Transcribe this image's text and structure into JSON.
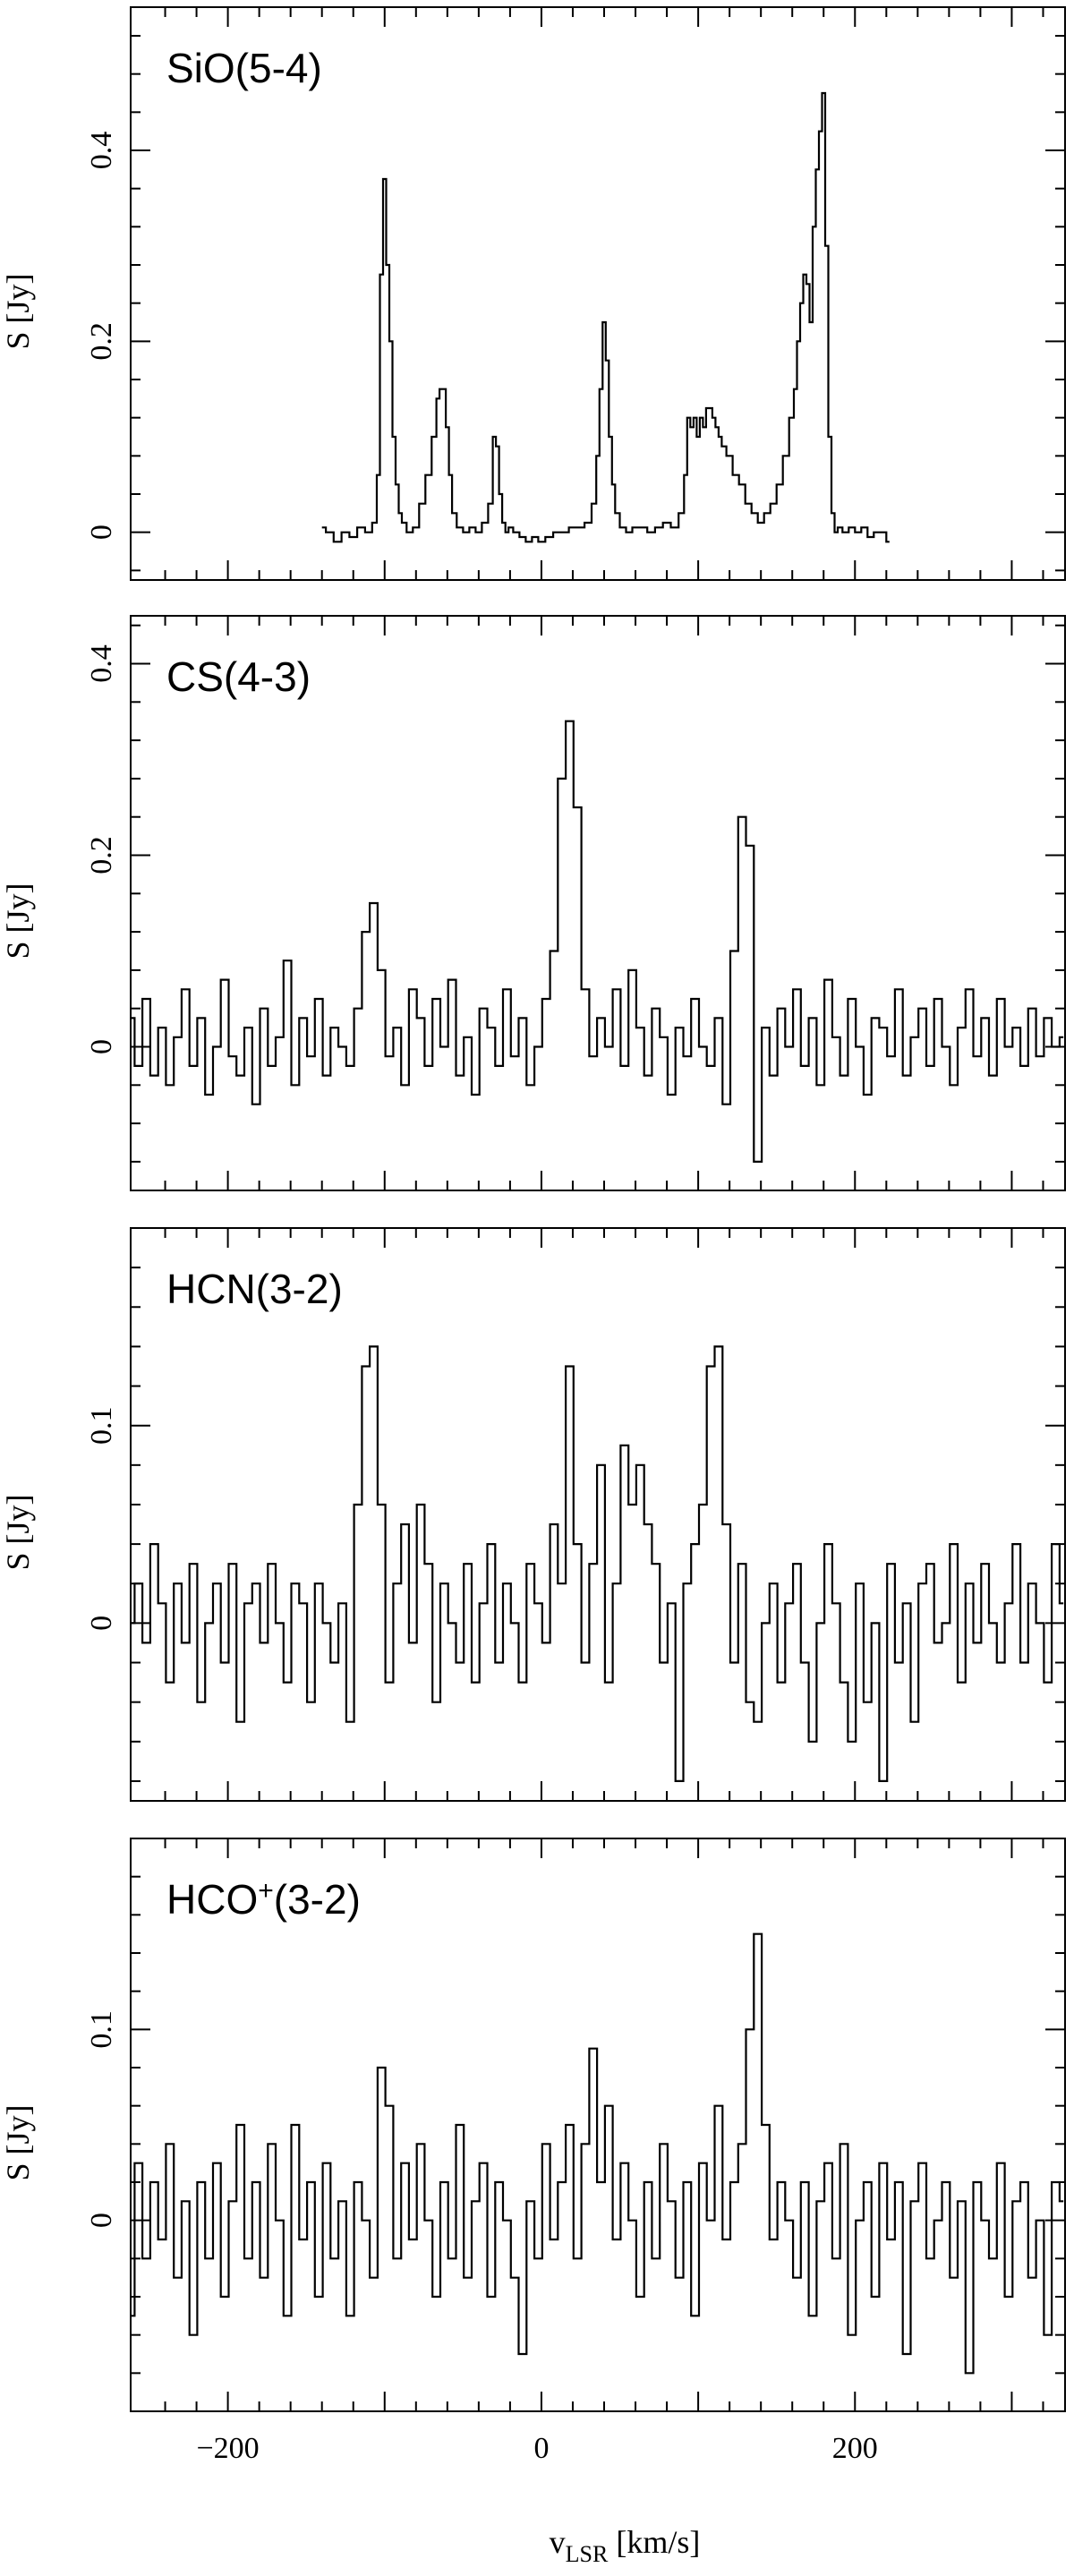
{
  "chart_data": [
    {
      "type": "line",
      "panel_label": "SiO(5-4)",
      "ylabel": "S [Jy]",
      "xlabel": "",
      "xlim": [
        -262,
        334
      ],
      "ylim": [
        -0.05,
        0.55
      ],
      "yticks": [
        0,
        0.2,
        0.4
      ],
      "ytick_labels": [
        "0",
        "0.2",
        "0.4"
      ],
      "x": [
        -140,
        -135,
        -130,
        -125,
        -120,
        -115,
        -110,
        -106,
        -104,
        -102,
        -100,
        -98,
        -96,
        -94,
        -92,
        -90,
        -88,
        -84,
        -80,
        -76,
        -72,
        -68,
        -66,
        -64,
        -62,
        -60,
        -58,
        -56,
        -52,
        -48,
        -44,
        -40,
        -36,
        -32,
        -30,
        -28,
        -26,
        -24,
        -22,
        -20,
        -16,
        -12,
        -8,
        -4,
        0,
        5,
        10,
        15,
        20,
        25,
        30,
        34,
        36,
        38,
        40,
        42,
        44,
        46,
        48,
        52,
        56,
        60,
        65,
        70,
        75,
        80,
        85,
        90,
        92,
        94,
        96,
        98,
        100,
        102,
        104,
        106,
        108,
        110,
        112,
        114,
        116,
        120,
        124,
        128,
        132,
        136,
        140,
        144,
        148,
        152,
        156,
        160,
        162,
        164,
        166,
        168,
        170,
        172,
        174,
        176,
        178,
        180,
        182,
        184,
        186,
        188,
        190,
        194,
        198,
        202,
        206,
        210,
        214,
        218,
        222
      ],
      "y": [
        0.005,
        0.0,
        -0.01,
        0.0,
        -0.005,
        0.005,
        0.0,
        0.01,
        0.06,
        0.27,
        0.37,
        0.28,
        0.2,
        0.1,
        0.05,
        0.02,
        0.01,
        0.0,
        0.005,
        0.03,
        0.06,
        0.1,
        0.14,
        0.15,
        0.15,
        0.11,
        0.06,
        0.02,
        0.005,
        0.0,
        0.005,
        0.0,
        0.01,
        0.03,
        0.1,
        0.09,
        0.04,
        0.01,
        0.0,
        0.005,
        0.0,
        -0.005,
        -0.01,
        -0.005,
        -0.01,
        -0.005,
        0.0,
        0.0,
        0.005,
        0.005,
        0.01,
        0.03,
        0.08,
        0.15,
        0.22,
        0.18,
        0.1,
        0.05,
        0.02,
        0.005,
        0.0,
        0.005,
        0.005,
        0.0,
        0.005,
        0.01,
        0.005,
        0.02,
        0.06,
        0.12,
        0.11,
        0.12,
        0.1,
        0.12,
        0.11,
        0.13,
        0.13,
        0.12,
        0.11,
        0.1,
        0.09,
        0.08,
        0.06,
        0.05,
        0.03,
        0.02,
        0.01,
        0.02,
        0.03,
        0.05,
        0.08,
        0.12,
        0.15,
        0.2,
        0.24,
        0.27,
        0.26,
        0.22,
        0.32,
        0.38,
        0.42,
        0.46,
        0.3,
        0.1,
        0.02,
        0.0,
        0.005,
        0.0,
        0.005,
        0.0,
        0.005,
        -0.005,
        0.0,
        0.0,
        -0.01
      ]
    },
    {
      "type": "line",
      "panel_label": "CS(4-3)",
      "ylabel": "S [Jy]",
      "xlabel": "",
      "xlim": [
        -262,
        334
      ],
      "ylim": [
        -0.15,
        0.45
      ],
      "yticks": [
        0,
        0.2,
        0.4
      ],
      "ytick_labels": [
        "0",
        "0.2",
        "0.4"
      ],
      "x": [
        -262,
        -257,
        -252,
        -247,
        -242,
        -237,
        -232,
        -227,
        -222,
        -217,
        -212,
        -207,
        -202,
        -197,
        -192,
        -187,
        -182,
        -177,
        -172,
        -167,
        -162,
        -157,
        -152,
        -147,
        -142,
        -137,
        -132,
        -127,
        -122,
        -117,
        -112,
        -107,
        -102,
        -97,
        -92,
        -87,
        -82,
        -77,
        -72,
        -67,
        -62,
        -57,
        -52,
        -47,
        -42,
        -37,
        -32,
        -27,
        -22,
        -17,
        -12,
        -7,
        -2,
        3,
        8,
        13,
        18,
        23,
        28,
        33,
        38,
        43,
        48,
        53,
        58,
        63,
        68,
        73,
        78,
        83,
        88,
        93,
        98,
        103,
        108,
        113,
        118,
        123,
        128,
        133,
        138,
        143,
        148,
        153,
        158,
        163,
        168,
        173,
        178,
        183,
        188,
        193,
        198,
        203,
        208,
        213,
        218,
        223,
        228,
        233,
        238,
        243,
        248,
        253,
        258,
        263,
        268,
        273,
        278,
        283,
        288,
        293,
        298,
        303,
        308,
        313,
        318,
        323,
        328,
        333
      ],
      "y": [
        0.03,
        -0.02,
        0.05,
        -0.03,
        0.02,
        -0.04,
        0.01,
        0.06,
        -0.02,
        0.03,
        -0.05,
        0.0,
        0.07,
        -0.01,
        -0.03,
        0.02,
        -0.06,
        0.04,
        -0.02,
        0.01,
        0.09,
        -0.04,
        0.03,
        -0.01,
        0.05,
        -0.03,
        0.02,
        0.0,
        -0.02,
        0.04,
        0.12,
        0.15,
        0.08,
        -0.01,
        0.02,
        -0.04,
        0.06,
        0.03,
        -0.02,
        0.05,
        0.0,
        0.07,
        -0.03,
        0.01,
        -0.05,
        0.04,
        0.02,
        -0.02,
        0.06,
        -0.01,
        0.03,
        -0.04,
        0.0,
        0.05,
        0.1,
        0.28,
        0.34,
        0.25,
        0.06,
        -0.01,
        0.03,
        0.0,
        0.06,
        -0.02,
        0.08,
        0.02,
        -0.03,
        0.04,
        0.01,
        -0.05,
        0.02,
        -0.01,
        0.05,
        0.0,
        -0.02,
        0.03,
        -0.06,
        0.1,
        0.24,
        0.21,
        -0.12,
        0.02,
        -0.03,
        0.04,
        0.0,
        0.06,
        -0.02,
        0.03,
        -0.04,
        0.07,
        0.01,
        -0.03,
        0.05,
        0.0,
        -0.05,
        0.03,
        0.02,
        -0.01,
        0.06,
        -0.03,
        0.01,
        0.04,
        -0.02,
        0.05,
        0.0,
        -0.04,
        0.02,
        0.06,
        -0.01,
        0.03,
        -0.03,
        0.05,
        0.0,
        0.02,
        -0.02,
        0.04,
        -0.01,
        0.03,
        0.0,
        0.01
      ]
    },
    {
      "type": "line",
      "panel_label": "HCN(3-2)",
      "ylabel": "S [Jy]",
      "xlabel": "",
      "xlim": [
        -262,
        334
      ],
      "ylim": [
        -0.09,
        0.2
      ],
      "yticks": [
        0,
        0.1
      ],
      "ytick_labels": [
        "0",
        "0.1"
      ],
      "x": [
        -262,
        -257,
        -252,
        -247,
        -242,
        -237,
        -232,
        -227,
        -222,
        -217,
        -212,
        -207,
        -202,
        -197,
        -192,
        -187,
        -182,
        -177,
        -172,
        -167,
        -162,
        -157,
        -152,
        -147,
        -142,
        -137,
        -132,
        -127,
        -122,
        -117,
        -112,
        -107,
        -102,
        -97,
        -92,
        -87,
        -82,
        -77,
        -72,
        -67,
        -62,
        -57,
        -52,
        -47,
        -42,
        -37,
        -32,
        -27,
        -22,
        -17,
        -12,
        -7,
        -2,
        3,
        8,
        13,
        18,
        23,
        28,
        33,
        38,
        43,
        48,
        53,
        58,
        63,
        68,
        73,
        78,
        83,
        88,
        93,
        98,
        103,
        108,
        113,
        118,
        123,
        128,
        133,
        138,
        143,
        148,
        153,
        158,
        163,
        168,
        173,
        178,
        183,
        188,
        193,
        198,
        203,
        208,
        213,
        218,
        223,
        228,
        233,
        238,
        243,
        248,
        253,
        258,
        263,
        268,
        273,
        278,
        283,
        288,
        293,
        298,
        303,
        308,
        313,
        318,
        323,
        328,
        333
      ],
      "y": [
        0.0,
        0.02,
        -0.01,
        0.04,
        0.01,
        -0.03,
        0.02,
        -0.01,
        0.03,
        -0.04,
        0.0,
        0.02,
        -0.02,
        0.03,
        -0.05,
        0.01,
        0.02,
        -0.01,
        0.03,
        0.0,
        -0.03,
        0.02,
        0.01,
        -0.04,
        0.02,
        0.0,
        -0.02,
        0.01,
        -0.05,
        0.06,
        0.13,
        0.14,
        0.06,
        -0.03,
        0.02,
        0.05,
        -0.01,
        0.06,
        0.03,
        -0.04,
        0.02,
        0.0,
        -0.02,
        0.03,
        -0.03,
        0.01,
        0.04,
        -0.02,
        0.02,
        0.0,
        -0.03,
        0.03,
        0.01,
        -0.01,
        0.05,
        0.02,
        0.13,
        0.04,
        -0.02,
        0.03,
        0.08,
        -0.03,
        0.02,
        0.09,
        0.06,
        0.08,
        0.05,
        0.03,
        -0.02,
        0.01,
        -0.08,
        0.02,
        0.04,
        0.06,
        0.13,
        0.14,
        0.05,
        -0.02,
        0.03,
        -0.04,
        -0.05,
        0.0,
        0.02,
        -0.03,
        0.01,
        0.03,
        -0.02,
        -0.06,
        0.0,
        0.04,
        0.01,
        -0.03,
        -0.06,
        0.02,
        -0.04,
        0.0,
        -0.08,
        0.03,
        -0.02,
        0.01,
        -0.05,
        0.02,
        0.03,
        -0.01,
        0.0,
        0.04,
        -0.03,
        0.02,
        -0.01,
        0.03,
        0.0,
        -0.02,
        0.01,
        0.04,
        -0.02,
        0.02,
        0.0,
        -0.03,
        0.04,
        0.01
      ]
    },
    {
      "type": "line",
      "panel_label": "HCO+(3-2)",
      "ylabel": "S [Jy]",
      "xlabel": "v_LSR [km/s]",
      "xlim": [
        -262,
        334
      ],
      "ylim": [
        -0.1,
        0.2
      ],
      "yticks": [
        0,
        0.1
      ],
      "ytick_labels": [
        "0",
        "0.1"
      ],
      "xticks": [
        -200,
        0,
        200
      ],
      "xtick_labels": [
        "−200",
        "0",
        "200"
      ],
      "x": [
        -262,
        -257,
        -252,
        -247,
        -242,
        -237,
        -232,
        -227,
        -222,
        -217,
        -212,
        -207,
        -202,
        -197,
        -192,
        -187,
        -182,
        -177,
        -172,
        -167,
        -162,
        -157,
        -152,
        -147,
        -142,
        -137,
        -132,
        -127,
        -122,
        -117,
        -112,
        -107,
        -102,
        -97,
        -92,
        -87,
        -82,
        -77,
        -72,
        -67,
        -62,
        -57,
        -52,
        -47,
        -42,
        -37,
        -32,
        -27,
        -22,
        -17,
        -12,
        -7,
        -2,
        3,
        8,
        13,
        18,
        23,
        28,
        33,
        38,
        43,
        48,
        53,
        58,
        63,
        68,
        73,
        78,
        83,
        88,
        93,
        98,
        103,
        108,
        113,
        118,
        123,
        128,
        133,
        138,
        143,
        148,
        153,
        158,
        163,
        168,
        173,
        178,
        183,
        188,
        193,
        198,
        203,
        208,
        213,
        218,
        223,
        228,
        233,
        238,
        243,
        248,
        253,
        258,
        263,
        268,
        273,
        278,
        283,
        288,
        293,
        298,
        303,
        308,
        313,
        318,
        323,
        328,
        333
      ],
      "y": [
        -0.05,
        0.03,
        -0.02,
        0.02,
        -0.01,
        0.04,
        -0.03,
        0.01,
        -0.06,
        0.02,
        -0.02,
        0.03,
        -0.04,
        0.01,
        0.05,
        -0.02,
        0.02,
        -0.03,
        0.04,
        0.0,
        -0.05,
        0.05,
        -0.01,
        0.02,
        -0.04,
        0.03,
        -0.02,
        0.01,
        -0.05,
        0.02,
        0.0,
        -0.03,
        0.08,
        0.06,
        -0.02,
        0.03,
        -0.01,
        0.04,
        0.0,
        -0.04,
        0.02,
        -0.02,
        0.05,
        -0.03,
        0.01,
        0.03,
        -0.04,
        0.02,
        0.0,
        -0.03,
        -0.07,
        0.01,
        -0.02,
        0.04,
        -0.01,
        0.02,
        0.05,
        -0.02,
        0.04,
        0.09,
        0.02,
        0.06,
        -0.01,
        0.03,
        0.0,
        -0.04,
        0.02,
        -0.02,
        0.04,
        0.01,
        -0.03,
        0.02,
        -0.05,
        0.03,
        0.0,
        0.06,
        -0.01,
        0.02,
        0.04,
        0.1,
        0.15,
        0.05,
        -0.01,
        0.02,
        0.0,
        -0.03,
        0.02,
        -0.05,
        0.01,
        0.03,
        -0.02,
        0.04,
        -0.06,
        0.0,
        0.02,
        -0.04,
        0.03,
        -0.01,
        0.02,
        -0.07,
        0.01,
        0.03,
        -0.02,
        0.0,
        0.02,
        -0.03,
        0.01,
        -0.08,
        0.02,
        0.0,
        -0.02,
        0.03,
        -0.04,
        0.01,
        0.02,
        -0.03,
        0.0,
        -0.06,
        0.02,
        0.01
      ]
    }
  ]
}
